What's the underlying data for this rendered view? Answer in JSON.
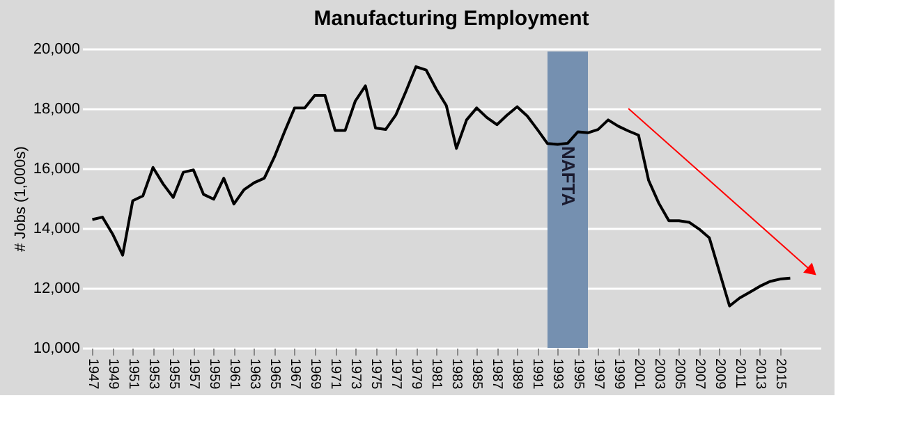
{
  "chart_data": {
    "type": "line",
    "title": "Manufacturing Employment",
    "ylabel": "# Jobs (1,000s)",
    "x": [
      1947,
      1948,
      1949,
      1950,
      1951,
      1952,
      1953,
      1954,
      1955,
      1956,
      1957,
      1958,
      1959,
      1960,
      1961,
      1962,
      1963,
      1964,
      1965,
      1966,
      1967,
      1968,
      1969,
      1970,
      1971,
      1972,
      1973,
      1974,
      1975,
      1976,
      1977,
      1978,
      1979,
      1980,
      1981,
      1982,
      1983,
      1984,
      1985,
      1986,
      1987,
      1988,
      1989,
      1990,
      1991,
      1992,
      1993,
      1994,
      1995,
      1996,
      1997,
      1998,
      1999,
      2000,
      2001,
      2002,
      2003,
      2004,
      2005,
      2006,
      2007,
      2008,
      2009,
      2010,
      2011,
      2012,
      2013,
      2014,
      2015,
      2016
    ],
    "series": [
      {
        "color": "#000000",
        "values": [
          14290,
          14370,
          13810,
          13100,
          14920,
          15080,
          16030,
          15480,
          15030,
          15870,
          15950,
          15130,
          14970,
          15670,
          14810,
          15290,
          15520,
          15670,
          16380,
          17220,
          18020,
          18020,
          18440,
          18440,
          17270,
          17270,
          18250,
          18760,
          17350,
          17300,
          17780,
          18570,
          19400,
          19290,
          18650,
          18100,
          16670,
          17620,
          18020,
          17700,
          17460,
          17780,
          18060,
          17750,
          17300,
          16830,
          16800,
          16840,
          17220,
          17190,
          17300,
          17620,
          17410,
          17250,
          17110,
          15600,
          14840,
          14250,
          14250,
          14200,
          13970,
          13680,
          12540,
          11400,
          11670,
          11860,
          12060,
          12220,
          12300,
          12330
        ]
      },
      {
        "type": "line",
        "color": "#ff0000",
        "x": [
          2000,
          2018
        ],
        "values": [
          18000,
          12600
        ]
      }
    ],
    "xlim": [
      1946,
      2019
    ],
    "xticks": [
      1947,
      1949,
      1951,
      1953,
      1955,
      1957,
      1959,
      1961,
      1963,
      1965,
      1967,
      1969,
      1971,
      1973,
      1975,
      1977,
      1979,
      1981,
      1983,
      1985,
      1987,
      1989,
      1991,
      1993,
      1995,
      1997,
      1999,
      2001,
      2003,
      2005,
      2007,
      2009,
      2011,
      2013,
      2015
    ],
    "ylim": [
      10000,
      20000
    ],
    "yticks": [
      {
        "value": 10000,
        "label": "10,000"
      },
      {
        "value": 12000,
        "label": "12,000"
      },
      {
        "value": 14000,
        "label": "14,000"
      },
      {
        "value": 16000,
        "label": "16,000"
      },
      {
        "value": 18000,
        "label": "18,000"
      },
      {
        "value": 20000,
        "label": "20,000"
      }
    ],
    "grid": "y",
    "bands": [
      {
        "axis": "x",
        "from": 1992,
        "to": 1996,
        "label": "NAFTA",
        "color": "#7590b0"
      }
    ]
  }
}
